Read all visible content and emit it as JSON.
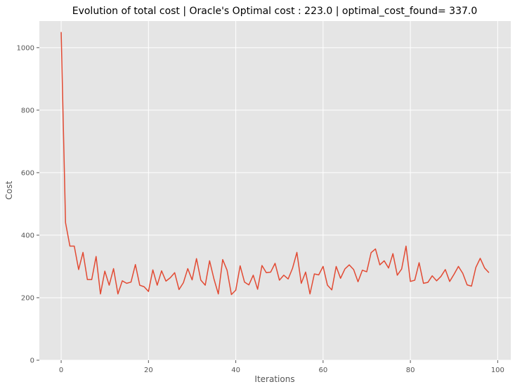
{
  "chart_data": {
    "type": "line",
    "title": "Evolution of total cost | Oracle's Optimal cost : 223.0 | optimal_cost_found= 337.0",
    "xlabel": "Iterations",
    "ylabel": "Cost",
    "xlim": [
      -5,
      103
    ],
    "ylim": [
      0,
      1085
    ],
    "xticks": [
      0,
      20,
      40,
      60,
      80,
      100
    ],
    "yticks": [
      0,
      200,
      400,
      600,
      800,
      1000
    ],
    "xtick_labels": [
      "0",
      "20",
      "40",
      "60",
      "80",
      "100"
    ],
    "ytick_labels": [
      "0",
      "200",
      "400",
      "600",
      "800",
      "1000"
    ],
    "grid": true,
    "background": "#e5e5e5",
    "grid_color": "#ffffff",
    "series": [
      {
        "color": "#e24a33",
        "x": [
          0,
          1,
          2,
          3,
          4,
          5,
          6,
          7,
          8,
          9,
          10,
          11,
          12,
          13,
          14,
          15,
          16,
          17,
          18,
          19,
          20,
          21,
          22,
          23,
          24,
          25,
          26,
          27,
          28,
          29,
          30,
          31,
          32,
          33,
          34,
          35,
          36,
          37,
          38,
          39,
          40,
          41,
          42,
          43,
          44,
          45,
          46,
          47,
          48,
          49,
          50,
          51,
          52,
          53,
          54,
          55,
          56,
          57,
          58,
          59,
          60,
          61,
          62,
          63,
          64,
          65,
          66,
          67,
          68,
          69,
          70,
          71,
          72,
          73,
          74,
          75,
          76,
          77,
          78,
          79,
          80,
          81,
          82,
          83,
          84,
          85,
          86,
          87,
          88,
          89,
          90,
          91,
          92,
          93,
          94,
          95,
          96,
          97,
          98
        ],
        "values": [
          1050,
          440,
          365,
          365,
          290,
          345,
          258,
          258,
          332,
          212,
          285,
          240,
          293,
          212,
          254,
          246,
          250,
          306,
          240,
          235,
          220,
          289,
          240,
          286,
          253,
          264,
          280,
          226,
          248,
          293,
          257,
          325,
          256,
          240,
          318,
          260,
          212,
          322,
          288,
          210,
          224,
          302,
          250,
          241,
          272,
          227,
          303,
          280,
          282,
          310,
          256,
          272,
          260,
          294,
          345,
          246,
          282,
          212,
          276,
          273,
          300,
          240,
          225,
          300,
          262,
          292,
          305,
          290,
          251,
          288,
          283,
          344,
          356,
          305,
          318,
          295,
          341,
          272,
          292,
          365,
          252,
          256,
          312,
          246,
          249,
          270,
          254,
          268,
          290,
          252,
          275,
          300,
          278,
          241,
          237,
          297,
          326,
          295,
          280
        ]
      }
    ]
  }
}
